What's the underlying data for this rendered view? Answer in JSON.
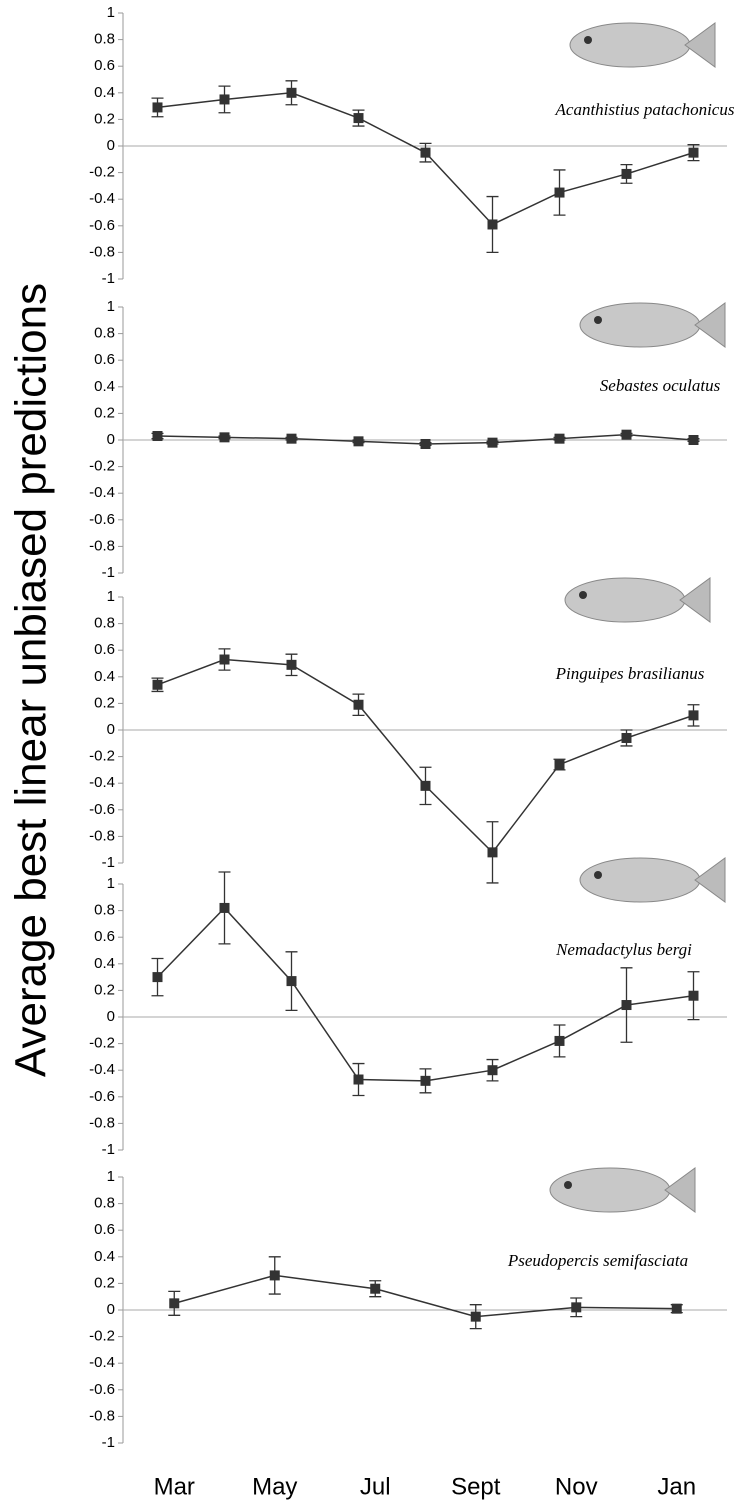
{
  "chart_data": [
    {
      "type": "line",
      "title": "Acanthistius patachonicus",
      "ylabel": "Average best linear unbiased predictions",
      "color": "#333333",
      "categories": [
        null,
        null,
        null,
        null,
        null,
        null,
        null,
        null,
        null
      ],
      "values": [
        0.29,
        0.35,
        0.4,
        0.21,
        -0.05,
        -0.59,
        -0.35,
        -0.21,
        -0.05
      ],
      "errors": [
        0.07,
        0.1,
        0.09,
        0.06,
        0.07,
        0.21,
        0.17,
        0.07,
        0.06
      ],
      "ylim": [
        -1,
        1
      ],
      "yticks": [
        1,
        0.8,
        0.6,
        0.4,
        0.2,
        0,
        -0.2,
        -0.4,
        -0.6,
        -0.8,
        -1
      ]
    },
    {
      "type": "line",
      "title": "Sebastes oculatus",
      "color": "#333333",
      "categories": [
        null,
        null,
        null,
        null,
        null,
        null,
        null,
        null,
        null
      ],
      "values": [
        0.03,
        0.02,
        0.01,
        -0.01,
        -0.03,
        -0.02,
        0.01,
        0.04,
        0.0
      ],
      "errors": [
        0.02,
        0.01,
        0.01,
        0.01,
        0.01,
        0.01,
        0.01,
        0.01,
        0.01
      ],
      "ylim": [
        -1,
        1
      ],
      "yticks": [
        1,
        0.8,
        0.6,
        0.4,
        0.2,
        0,
        -0.2,
        -0.4,
        -0.6,
        -0.8,
        -1
      ]
    },
    {
      "type": "line",
      "title": "Pinguipes brasilianus",
      "color": "#333333",
      "categories": [
        null,
        null,
        null,
        null,
        null,
        null,
        null,
        null,
        null
      ],
      "values": [
        0.34,
        0.53,
        0.49,
        0.19,
        -0.42,
        -0.92,
        -0.26,
        -0.06,
        0.11
      ],
      "errors": [
        0.05,
        0.08,
        0.08,
        0.08,
        0.14,
        0.23,
        0.04,
        0.06,
        0.08
      ],
      "ylim": [
        -1,
        1
      ],
      "yticks": [
        1,
        0.8,
        0.6,
        0.4,
        0.2,
        0,
        -0.2,
        -0.4,
        -0.6,
        -0.8,
        -1
      ]
    },
    {
      "type": "line",
      "title": "Nemadactylus bergi",
      "color": "#333333",
      "categories": [
        null,
        null,
        null,
        null,
        null,
        null,
        null,
        null,
        null
      ],
      "values": [
        0.3,
        0.82,
        0.27,
        -0.47,
        -0.48,
        -0.4,
        -0.18,
        0.09,
        0.16
      ],
      "errors": [
        0.14,
        0.27,
        0.22,
        0.12,
        0.09,
        0.08,
        0.12,
        0.28,
        0.18
      ],
      "ylim": [
        -1,
        1
      ],
      "yticks": [
        1,
        0.8,
        0.6,
        0.4,
        0.2,
        0,
        -0.2,
        -0.4,
        -0.6,
        -0.8,
        -1
      ]
    },
    {
      "type": "line",
      "title": "Pseudopercis semifasciata",
      "color": "#333333",
      "categories": [
        "Mar",
        "May",
        "Jul",
        "Sept",
        "Nov",
        "Jan"
      ],
      "values": [
        0.05,
        0.26,
        0.16,
        -0.05,
        0.02,
        0.01
      ],
      "errors": [
        0.09,
        0.14,
        0.06,
        0.09,
        0.07,
        0.03
      ],
      "ylim": [
        -1,
        1
      ],
      "yticks": [
        1,
        0.8,
        0.6,
        0.4,
        0.2,
        0,
        -0.2,
        -0.4,
        -0.6,
        -0.8,
        -1
      ]
    }
  ]
}
